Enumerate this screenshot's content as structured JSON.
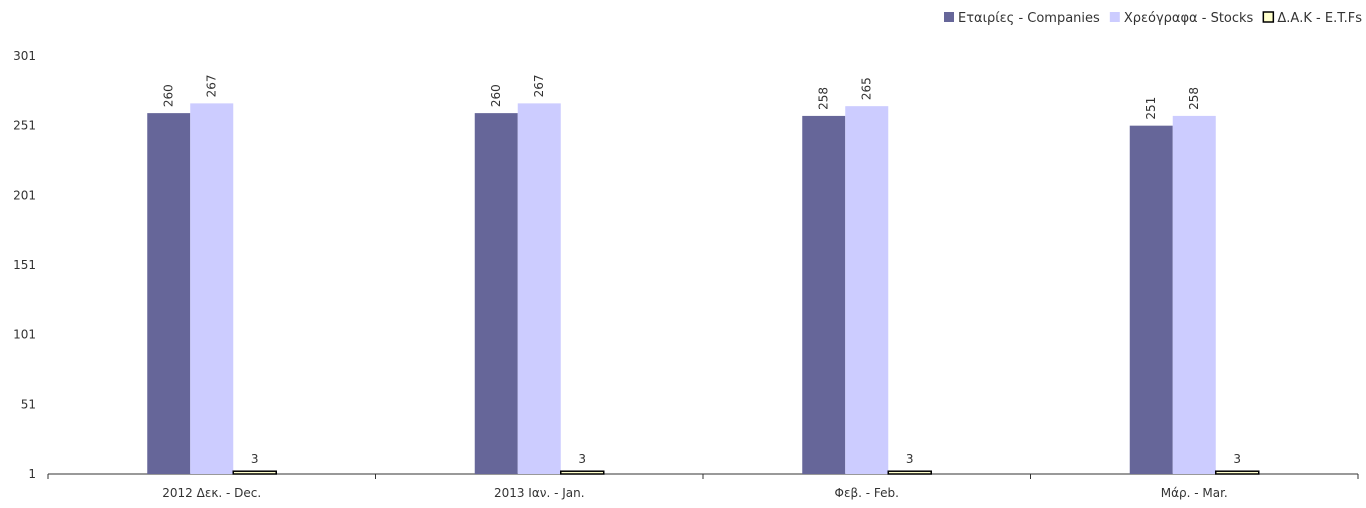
{
  "chart_data": {
    "type": "bar",
    "categories": [
      "2012 Δεκ. - Dec.",
      "2013 Ιαν. - Jan.",
      "Φεβ. - Feb.",
      "Μάρ. - Mar."
    ],
    "series": [
      {
        "name": "Εταιρίες - Companies",
        "values": [
          260,
          260,
          258,
          251
        ],
        "color": "#666699"
      },
      {
        "name": "Χρεόγραφα - Stocks",
        "values": [
          267,
          267,
          265,
          258
        ],
        "color": "#ccccff"
      },
      {
        "name": "Δ.Α.Κ - E.T.Fs",
        "values": [
          3,
          3,
          3,
          3
        ],
        "color": "#ffffcc",
        "stroke": "#000000"
      }
    ],
    "yticks": [
      1,
      51,
      101,
      151,
      201,
      251,
      301
    ],
    "ylim": [
      1,
      301
    ],
    "legend_position": "top-right",
    "grid": false,
    "data_labels": true
  }
}
